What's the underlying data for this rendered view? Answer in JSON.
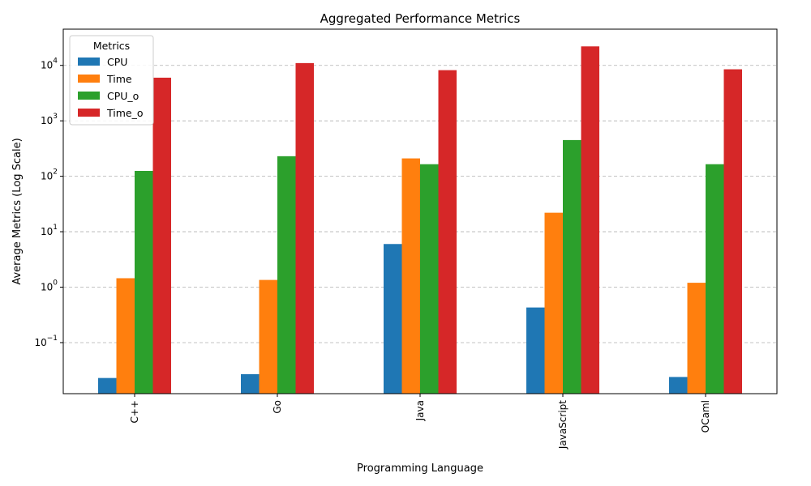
{
  "chart_data": {
    "type": "bar",
    "title": "Aggregated Performance Metrics",
    "xlabel": "Programming Language",
    "ylabel": "Average Metrics (Log Scale)",
    "yscale": "log",
    "ylim": [
      0.012,
      45000
    ],
    "y_ticks": [
      {
        "value": 0.1,
        "mantissa": "10",
        "exp": "−1"
      },
      {
        "value": 1,
        "mantissa": "10",
        "exp": "0"
      },
      {
        "value": 10,
        "mantissa": "10",
        "exp": "1"
      },
      {
        "value": 100,
        "mantissa": "10",
        "exp": "2"
      },
      {
        "value": 1000,
        "mantissa": "10",
        "exp": "3"
      },
      {
        "value": 10000,
        "mantissa": "10",
        "exp": "4"
      }
    ],
    "grid": "y-dashed",
    "legend": {
      "title": "Metrics",
      "position": "top-left"
    },
    "categories": [
      "C++",
      "Go",
      "Java",
      "JavaScript",
      "OCaml"
    ],
    "series": [
      {
        "name": "CPU",
        "color": "#1f77b4",
        "values": [
          0.023,
          0.027,
          6.0,
          0.43,
          0.024
        ]
      },
      {
        "name": "Time",
        "color": "#ff7f0e",
        "values": [
          1.45,
          1.35,
          210,
          22,
          1.2
        ]
      },
      {
        "name": "CPU_o",
        "color": "#2ca02c",
        "values": [
          125,
          230,
          165,
          450,
          165
        ]
      },
      {
        "name": "Time_o",
        "color": "#d62728",
        "values": [
          6000,
          11000,
          8200,
          22000,
          8500
        ]
      }
    ]
  }
}
